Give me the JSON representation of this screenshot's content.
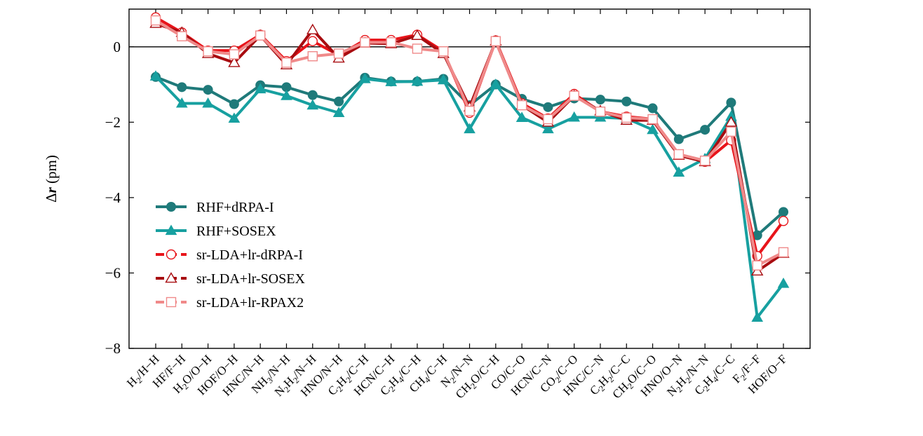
{
  "chart_data": {
    "type": "line",
    "ylabel": "Δr (pm)",
    "ylabel_parts": {
      "sym": "Δ",
      "var": "r",
      "unit": " (pm)"
    },
    "ylim": [
      -8,
      1
    ],
    "yticks": [
      0,
      -2,
      -4,
      -6,
      -8
    ],
    "ytick_labels": [
      "0",
      "−2",
      "−4",
      "−6",
      "−8"
    ],
    "zero_line": true,
    "grid": false,
    "legend_position": "lower-left",
    "categories": [
      [
        [
          "H",
          "n"
        ],
        [
          "2",
          "sub"
        ],
        [
          "/H−H",
          "n"
        ]
      ],
      [
        [
          "HF/F−H",
          "n"
        ]
      ],
      [
        [
          "H",
          "n"
        ],
        [
          "2",
          "sub"
        ],
        [
          "O/O−H",
          "n"
        ]
      ],
      [
        [
          "HOF/O−H",
          "n"
        ]
      ],
      [
        [
          "HNC/N−H",
          "n"
        ]
      ],
      [
        [
          "NH",
          "n"
        ],
        [
          "3",
          "sub"
        ],
        [
          "/N−H",
          "n"
        ]
      ],
      [
        [
          "N",
          "n"
        ],
        [
          "2",
          "sub"
        ],
        [
          "H",
          "n"
        ],
        [
          "2",
          "sub"
        ],
        [
          "/N−H",
          "n"
        ]
      ],
      [
        [
          "HNO/N−H",
          "n"
        ]
      ],
      [
        [
          "C",
          "n"
        ],
        [
          "2",
          "sub"
        ],
        [
          "H",
          "n"
        ],
        [
          "2",
          "sub"
        ],
        [
          "/C−H",
          "n"
        ]
      ],
      [
        [
          "HCN/C−H",
          "n"
        ]
      ],
      [
        [
          "C",
          "n"
        ],
        [
          "2",
          "sub"
        ],
        [
          "H",
          "n"
        ],
        [
          "4",
          "sub"
        ],
        [
          "/C−H",
          "n"
        ]
      ],
      [
        [
          "CH",
          "n"
        ],
        [
          "4",
          "sub"
        ],
        [
          "/C−H",
          "n"
        ]
      ],
      [
        [
          "N",
          "n"
        ],
        [
          "2",
          "sub"
        ],
        [
          "/N−N",
          "n"
        ]
      ],
      [
        [
          "CH",
          "n"
        ],
        [
          "2",
          "sub"
        ],
        [
          "O/C−H",
          "n"
        ]
      ],
      [
        [
          "CO/C−O",
          "n"
        ]
      ],
      [
        [
          "HCN/C−N",
          "n"
        ]
      ],
      [
        [
          "CO",
          "n"
        ],
        [
          "2",
          "sub"
        ],
        [
          "/C−O",
          "n"
        ]
      ],
      [
        [
          "HNC/C−N",
          "n"
        ]
      ],
      [
        [
          "C",
          "n"
        ],
        [
          "2",
          "sub"
        ],
        [
          "H",
          "n"
        ],
        [
          "2",
          "sub"
        ],
        [
          "/C−C",
          "n"
        ]
      ],
      [
        [
          "CH",
          "n"
        ],
        [
          "2",
          "sub"
        ],
        [
          "O/C−O",
          "n"
        ]
      ],
      [
        [
          "HNO/O−N",
          "n"
        ]
      ],
      [
        [
          "N",
          "n"
        ],
        [
          "2",
          "sub"
        ],
        [
          "H",
          "n"
        ],
        [
          "2",
          "sub"
        ],
        [
          "/N−N",
          "n"
        ]
      ],
      [
        [
          "C",
          "n"
        ],
        [
          "2",
          "sub"
        ],
        [
          "H",
          "n"
        ],
        [
          "4",
          "sub"
        ],
        [
          "/C−C",
          "n"
        ]
      ],
      [
        [
          "F",
          "n"
        ],
        [
          "2",
          "sub"
        ],
        [
          "/F−F",
          "n"
        ]
      ],
      [
        [
          "HOF/O−F",
          "n"
        ]
      ]
    ],
    "series": [
      {
        "name": "RHF+dRPA-I",
        "color": "#1f7a7a",
        "marker": "circle",
        "filled": true,
        "values": [
          -0.8,
          -1.07,
          -1.14,
          -1.52,
          -1.02,
          -1.07,
          -1.28,
          -1.45,
          -0.82,
          -0.92,
          -0.92,
          -0.85,
          -1.55,
          -1.0,
          -1.38,
          -1.6,
          -1.37,
          -1.4,
          -1.45,
          -1.63,
          -2.45,
          -2.2,
          -1.48,
          -5.0,
          -4.38
        ]
      },
      {
        "name": "RHF+SOSEX",
        "color": "#17a0a0",
        "marker": "triangle",
        "filled": true,
        "values": [
          -0.78,
          -1.5,
          -1.5,
          -1.9,
          -1.12,
          -1.3,
          -1.55,
          -1.75,
          -0.85,
          -0.93,
          -0.92,
          -0.88,
          -2.18,
          -1.0,
          -1.88,
          -2.18,
          -1.87,
          -1.87,
          -1.9,
          -2.2,
          -3.33,
          -2.97,
          -1.85,
          -7.18,
          -6.28
        ]
      },
      {
        "name": "sr-LDA+lr-dRPA-I",
        "color": "#e8141a",
        "marker": "circle",
        "filled": false,
        "values": [
          0.78,
          0.38,
          -0.1,
          -0.1,
          0.32,
          -0.38,
          0.15,
          -0.22,
          0.18,
          0.18,
          0.32,
          -0.12,
          -1.75,
          0.17,
          -1.5,
          -1.9,
          -1.25,
          -1.72,
          -1.85,
          -1.92,
          -2.85,
          -3.05,
          -2.48,
          -5.55,
          -4.62
        ]
      },
      {
        "name": "sr-LDA+lr-SOSEX",
        "color": "#a80c10",
        "marker": "triangle",
        "filled": false,
        "values": [
          0.62,
          0.38,
          -0.18,
          -0.42,
          0.3,
          -0.48,
          0.45,
          -0.3,
          0.1,
          0.08,
          0.3,
          -0.18,
          -1.6,
          0.15,
          -1.55,
          -2.0,
          -1.3,
          -1.7,
          -1.95,
          -1.95,
          -2.88,
          -3.05,
          -2.0,
          -5.95,
          -5.48
        ]
      },
      {
        "name": "sr-LDA+lr-RPAX2",
        "color": "#f08a8a",
        "marker": "square",
        "filled": false,
        "values": [
          0.7,
          0.28,
          -0.12,
          -0.2,
          0.3,
          -0.42,
          -0.25,
          -0.18,
          0.12,
          0.12,
          -0.05,
          -0.12,
          -1.7,
          0.15,
          -1.55,
          -1.92,
          -1.3,
          -1.72,
          -1.88,
          -1.92,
          -2.85,
          -3.02,
          -2.25,
          -5.8,
          -5.45
        ]
      }
    ]
  }
}
